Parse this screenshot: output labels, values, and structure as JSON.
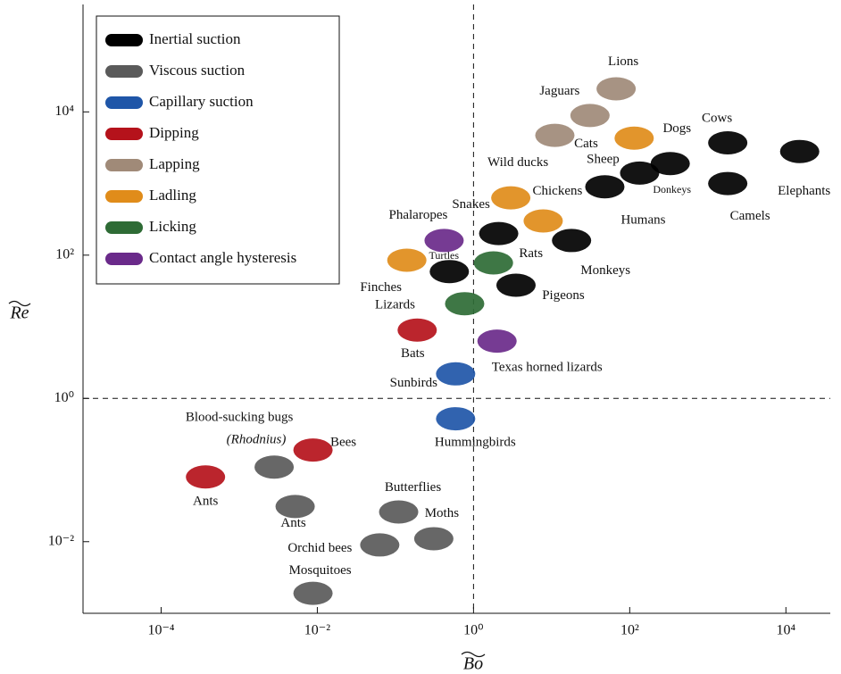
{
  "chart_data": {
    "type": "scatter",
    "x_label": "Bo",
    "y_label": "Re",
    "xscale": "log",
    "yscale": "log",
    "xlim": [
      1e-05,
      37000
    ],
    "ylim": [
      0.001,
      316000
    ],
    "xticks": [
      {
        "value": 0.0001,
        "label": "10⁻⁴"
      },
      {
        "value": 0.01,
        "label": "10⁻²"
      },
      {
        "value": 1,
        "label": "10⁰"
      },
      {
        "value": 100,
        "label": "10²"
      },
      {
        "value": 10000,
        "label": "10⁴"
      }
    ],
    "yticks": [
      {
        "value": 0.01,
        "label": "10⁻²"
      },
      {
        "value": 1,
        "label": "10⁰"
      },
      {
        "value": 100,
        "label": "10²"
      },
      {
        "value": 10000,
        "label": "10⁴"
      }
    ],
    "ref_x": 1,
    "ref_y": 1,
    "annotations": [
      "(Rhodnius)"
    ],
    "series": [
      {
        "name": "Inertial suction",
        "color": "#000000",
        "labels": [
          "Cows",
          "Elephants",
          "Donkeys",
          "Camels",
          "Humans",
          "Sheep",
          "Snakes",
          "Monkeys",
          "Pigeons",
          "Turtles"
        ],
        "x": [
          1800,
          15000,
          330,
          1800,
          134,
          48,
          2.1,
          18,
          3.5,
          0.49
        ],
        "y": [
          3700,
          2800,
          1900,
          1000,
          1400,
          900,
          200,
          160,
          38,
          59
        ]
      },
      {
        "name": "Viscous suction",
        "color": "#5a5a5a",
        "labels": [
          "Blood-sucking bugs",
          "Ants",
          "Butterflies",
          "Moths",
          "Orchid bees",
          "Mosquitoes"
        ],
        "x": [
          0.0028,
          0.0052,
          0.11,
          0.31,
          0.063,
          0.0088
        ],
        "y": [
          0.11,
          0.031,
          0.026,
          0.011,
          0.009,
          0.0019
        ]
      },
      {
        "name": "Capillary suction",
        "color": "#1f56a8",
        "labels": [
          "Sunbirds",
          "Hummingbirds"
        ],
        "x": [
          0.59,
          0.59
        ],
        "y": [
          2.2,
          0.52
        ]
      },
      {
        "name": "Dipping",
        "color": "#b5121b",
        "labels": [
          "Bats",
          "Bees",
          "Ants"
        ],
        "x": [
          0.19,
          0.0088,
          0.00037
        ],
        "y": [
          9,
          0.19,
          0.08
        ]
      },
      {
        "name": "Lapping",
        "color": "#a08a78",
        "labels": [
          "Lions",
          "Jaguars",
          "Cats"
        ],
        "x": [
          67,
          31,
          11
        ],
        "y": [
          21000,
          8900,
          4700
        ]
      },
      {
        "name": "Ladling",
        "color": "#e08c1a",
        "labels": [
          "Dogs",
          "Chickens",
          "Wild ducks",
          "Finches"
        ],
        "x": [
          114,
          7.8,
          3,
          0.14
        ],
        "y": [
          4300,
          300,
          630,
          85
        ]
      },
      {
        "name": "Licking",
        "color": "#2e6b35",
        "labels": [
          "Rats",
          "Lizards"
        ],
        "x": [
          1.8,
          0.77
        ],
        "y": [
          78,
          21
        ]
      },
      {
        "name": "Contact angle hysteresis",
        "color": "#6a2a8a",
        "labels": [
          "Phalaropes",
          "Texas horned lizards"
        ],
        "x": [
          0.42,
          2
        ],
        "y": [
          160,
          6.3
        ]
      }
    ]
  }
}
